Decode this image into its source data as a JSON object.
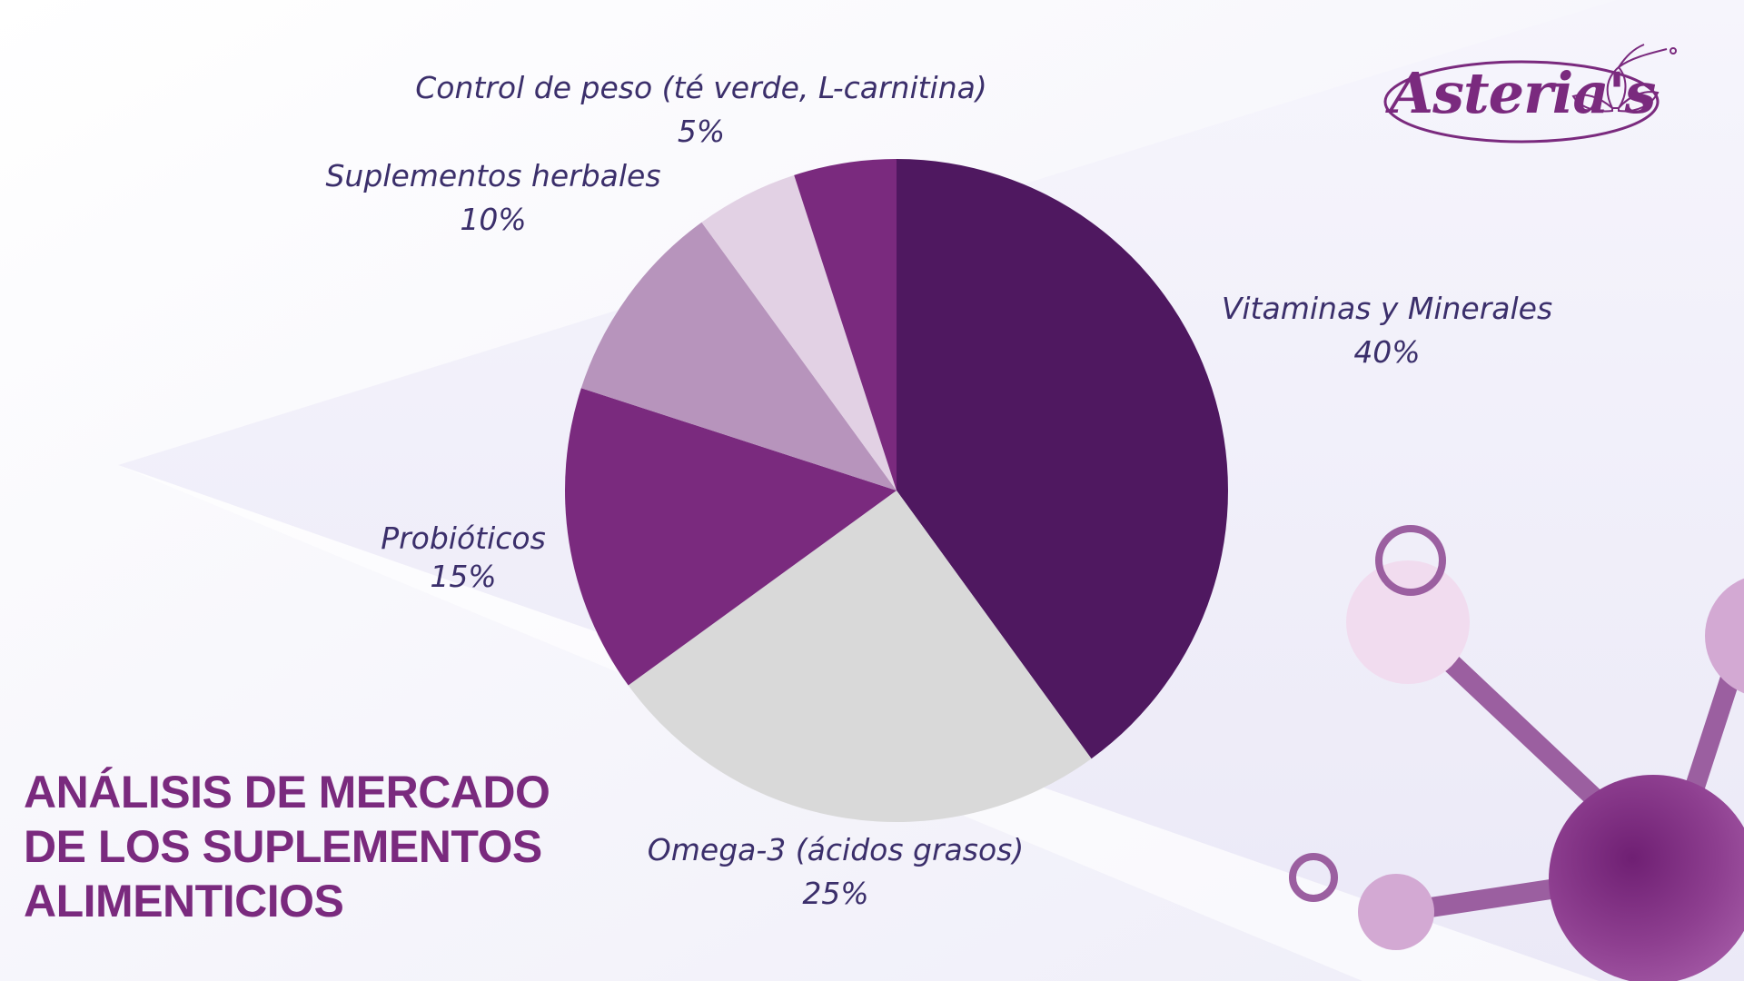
{
  "brand": {
    "logo_text": "Asteria's",
    "color": "#7a2a7e"
  },
  "title_lines": [
    "ANÁLISIS DE MERCADO",
    "DE LOS SUPLEMENTOS",
    "ALIMENTICIOS"
  ],
  "colors": {
    "title": "#7a2a7e",
    "label": "#3b2f6b",
    "molecule_dark": "#8e3f90",
    "molecule_light": "#f1dcef",
    "molecule_mid": "#d3a9d3",
    "molecule_stroke": "#9b5fa0"
  },
  "chart_data": {
    "type": "pie",
    "title": "",
    "start_angle_deg": 0,
    "direction": "clockwise",
    "slices": [
      {
        "label": "Vitaminas y Minerales",
        "value": 40,
        "pct_label": "40%",
        "color": "#4f1860"
      },
      {
        "label": "Omega-3 (ácidos grasos)",
        "value": 25,
        "pct_label": "25%",
        "color": "#d9d9d9"
      },
      {
        "label": "Probióticos",
        "value": 15,
        "pct_label": "15%",
        "color": "#7a2a7e"
      },
      {
        "label": "Suplementos herbales",
        "value": 10,
        "pct_label": "10%",
        "color": "#b794bc"
      },
      {
        "label": "Control de peso (té verde, L-carnitina)",
        "value": 5,
        "pct_label": "5%",
        "color": "#e2d1e4"
      },
      {
        "label": "",
        "value": 5,
        "pct_label": "",
        "color": "#7a2a7e"
      }
    ]
  }
}
